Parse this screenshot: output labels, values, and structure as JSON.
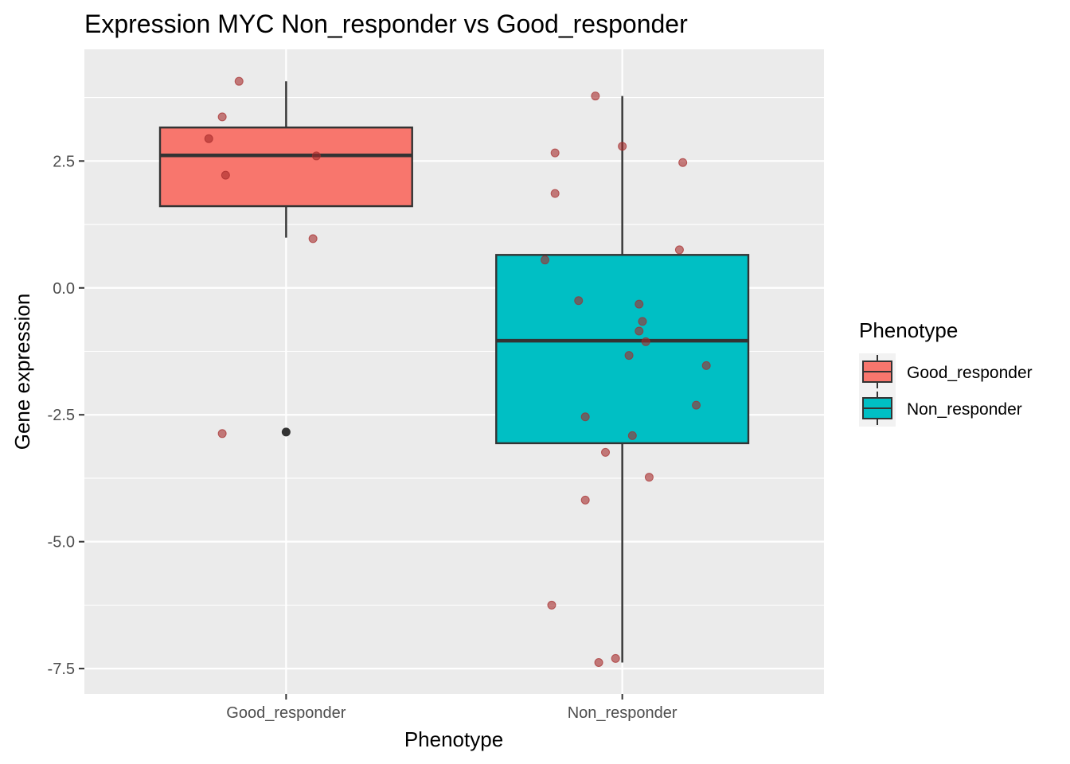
{
  "chart_data": {
    "type": "boxplot",
    "title": "Expression MYC Non_responder vs Good_responder",
    "xlabel": "Phenotype",
    "ylabel": "Gene expression",
    "categories": [
      "Good_responder",
      "Non_responder"
    ],
    "ylim": [
      -8.0,
      4.7
    ],
    "yticks": [
      2.5,
      0.0,
      -2.5,
      -5.0,
      -7.5
    ],
    "ytick_labels": [
      "2.5",
      "0.0",
      "-2.5",
      "-5.0",
      "-7.5"
    ],
    "grid": true,
    "legend": {
      "title": "Phenotype",
      "position": "right",
      "entries": [
        "Good_responder",
        "Non_responder"
      ]
    },
    "colors": {
      "panel": "#ebebeb",
      "grid": "#ffffff",
      "Good_responder": "#f8766d",
      "Non_responder": "#00bfc4",
      "box_line": "#333333",
      "jitter_point": "#a52a2a"
    },
    "boxes": [
      {
        "category": "Good_responder",
        "min": 0.99,
        "q1": 1.61,
        "median": 2.61,
        "q3": 3.16,
        "max": 4.07,
        "outliers": [
          -2.84
        ]
      },
      {
        "category": "Non_responder",
        "min": -7.38,
        "q1": -3.06,
        "median": -1.04,
        "q3": 0.65,
        "max": 3.78,
        "outliers": []
      }
    ],
    "points": [
      {
        "category": "Good_responder",
        "jitter": -0.14,
        "y": 4.07
      },
      {
        "category": "Good_responder",
        "jitter": -0.19,
        "y": 3.37
      },
      {
        "category": "Good_responder",
        "jitter": -0.23,
        "y": 2.94
      },
      {
        "category": "Good_responder",
        "jitter": 0.09,
        "y": 2.6
      },
      {
        "category": "Good_responder",
        "jitter": -0.18,
        "y": 2.22
      },
      {
        "category": "Good_responder",
        "jitter": 0.08,
        "y": 0.97
      },
      {
        "category": "Good_responder",
        "jitter": -0.19,
        "y": -2.87
      },
      {
        "category": "Non_responder",
        "jitter": -0.08,
        "y": 3.78
      },
      {
        "category": "Non_responder",
        "jitter": 0.0,
        "y": 2.79
      },
      {
        "category": "Non_responder",
        "jitter": -0.2,
        "y": 2.66
      },
      {
        "category": "Non_responder",
        "jitter": 0.18,
        "y": 2.47
      },
      {
        "category": "Non_responder",
        "jitter": -0.2,
        "y": 1.86
      },
      {
        "category": "Non_responder",
        "jitter": 0.17,
        "y": 0.75
      },
      {
        "category": "Non_responder",
        "jitter": -0.23,
        "y": 0.55
      },
      {
        "category": "Non_responder",
        "jitter": -0.13,
        "y": -0.25
      },
      {
        "category": "Non_responder",
        "jitter": 0.05,
        "y": -0.32
      },
      {
        "category": "Non_responder",
        "jitter": 0.06,
        "y": -0.66
      },
      {
        "category": "Non_responder",
        "jitter": 0.05,
        "y": -0.85
      },
      {
        "category": "Non_responder",
        "jitter": 0.07,
        "y": -1.06
      },
      {
        "category": "Non_responder",
        "jitter": 0.02,
        "y": -1.33
      },
      {
        "category": "Non_responder",
        "jitter": 0.25,
        "y": -1.53
      },
      {
        "category": "Non_responder",
        "jitter": 0.22,
        "y": -2.31
      },
      {
        "category": "Non_responder",
        "jitter": -0.11,
        "y": -2.54
      },
      {
        "category": "Non_responder",
        "jitter": 0.03,
        "y": -2.91
      },
      {
        "category": "Non_responder",
        "jitter": -0.05,
        "y": -3.24
      },
      {
        "category": "Non_responder",
        "jitter": 0.08,
        "y": -3.73
      },
      {
        "category": "Non_responder",
        "jitter": -0.11,
        "y": -4.18
      },
      {
        "category": "Non_responder",
        "jitter": -0.21,
        "y": -6.25
      },
      {
        "category": "Non_responder",
        "jitter": -0.02,
        "y": -7.3
      },
      {
        "category": "Non_responder",
        "jitter": -0.07,
        "y": -7.38
      }
    ]
  }
}
